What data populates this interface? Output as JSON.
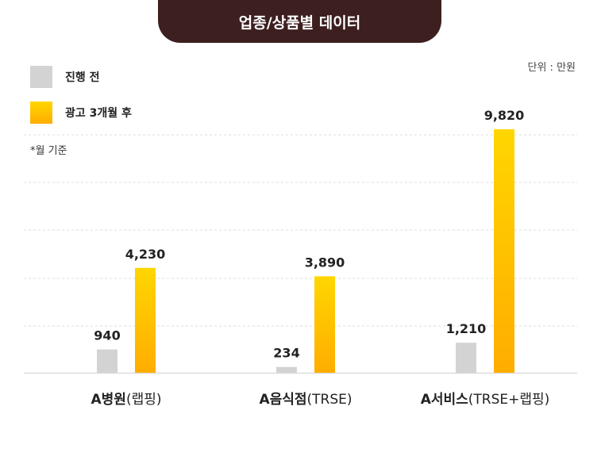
{
  "title": "업종/상품별 데이터",
  "unit_label": "단위 : 만원",
  "note": "*월 기준",
  "colors": {
    "before": "#d3d3d3",
    "after_top": "#ffd600",
    "after_bottom": "#ffad00",
    "title_bg": "#3d1f1f"
  },
  "chart_data": {
    "type": "bar",
    "categories": [
      {
        "bold": "A병원",
        "normal": "(랩핑)"
      },
      {
        "bold": "A음식점",
        "normal": "(TRSE)"
      },
      {
        "bold": "A서비스",
        "normal": "(TRSE+랩핑)"
      }
    ],
    "series": [
      {
        "name": "진행 전",
        "values": [
          940,
          234,
          1210
        ],
        "labels": [
          "940",
          "234",
          "1,210"
        ]
      },
      {
        "name": "광고 3개월 후",
        "values": [
          4230,
          3890,
          9820
        ],
        "labels": [
          "4,230",
          "3,890",
          "9,820"
        ]
      }
    ],
    "ylim": [
      0,
      10000
    ],
    "grid": true,
    "legend": "top-left"
  }
}
